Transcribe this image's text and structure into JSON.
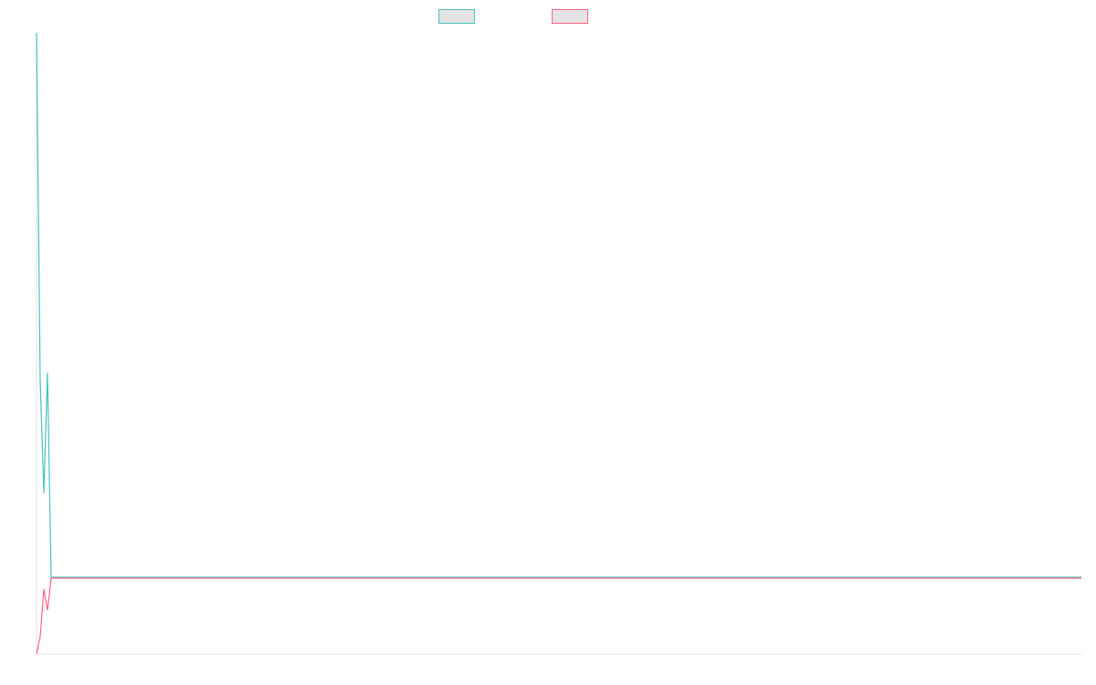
{
  "chart_data": {
    "type": "line",
    "title": "",
    "xlabel": "",
    "ylabel": "",
    "xlim": [
      0,
      286
    ],
    "ylim": [
      0,
      680
    ],
    "grid": false,
    "legend": "top",
    "series": [
      {
        "color": "#4bc0c0",
        "x": [
          0,
          1,
          2,
          3,
          4,
          286
        ],
        "values": [
          680,
          300,
          176,
          308,
          84,
          84
        ]
      },
      {
        "color": "#ff6384",
        "x": [
          0,
          1,
          2,
          3,
          4,
          286
        ],
        "values": [
          0,
          19,
          71,
          48,
          83,
          83
        ]
      }
    ]
  }
}
